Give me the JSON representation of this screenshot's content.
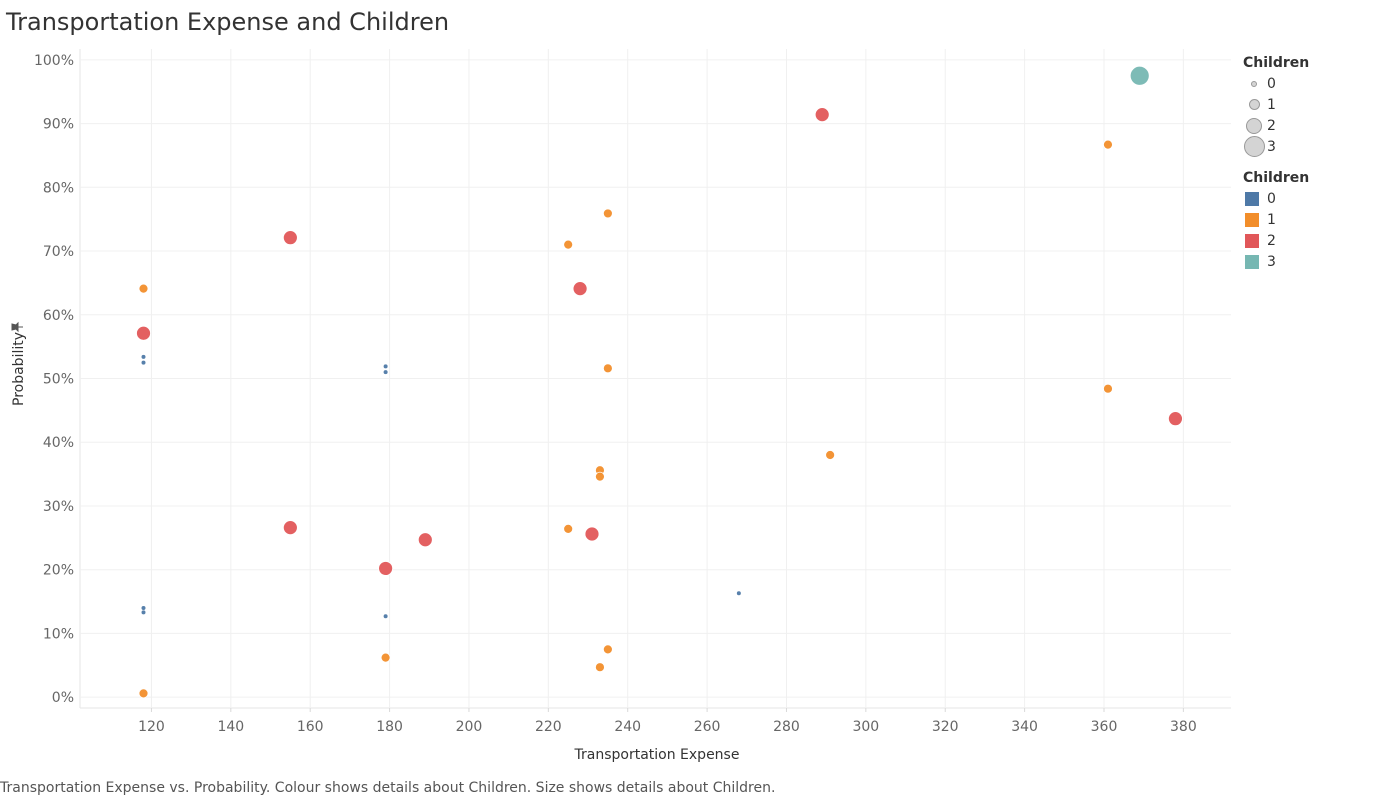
{
  "title": "Transportation Expense and Children",
  "caption": "Transportation Expense vs. Probability. Colour shows details about Children. Size shows details about Children.",
  "legend_size": {
    "title": "Children",
    "items": [
      {
        "label": "0",
        "radius": 2
      },
      {
        "label": "1",
        "radius": 4.5
      },
      {
        "label": "2",
        "radius": 7
      },
      {
        "label": "3",
        "radius": 9.5
      }
    ]
  },
  "legend_color": {
    "title": "Children",
    "items": [
      {
        "label": "0",
        "color": "#4e79a7"
      },
      {
        "label": "1",
        "color": "#f28e2b"
      },
      {
        "label": "2",
        "color": "#e15759"
      },
      {
        "label": "3",
        "color": "#76b7b2"
      }
    ]
  },
  "chart_data": {
    "type": "scatter",
    "title": "Transportation Expense and Children",
    "xlabel": "Transportation Expense",
    "ylabel": "Probability",
    "xlim": [
      102,
      392
    ],
    "ylim": [
      -1.7,
      101.7
    ],
    "x_ticks": [
      120,
      140,
      160,
      180,
      200,
      220,
      240,
      260,
      280,
      300,
      320,
      340,
      360,
      380
    ],
    "y_ticks": [
      0,
      10,
      20,
      30,
      40,
      50,
      60,
      70,
      80,
      90,
      100
    ],
    "y_tick_labels": [
      "0%",
      "10%",
      "20%",
      "30%",
      "40%",
      "50%",
      "60%",
      "70%",
      "80%",
      "90%",
      "100%"
    ],
    "grid": true,
    "series": [
      {
        "name": "0",
        "color": "#4e79a7",
        "radius": 2,
        "points": [
          [
            118,
            53.4
          ],
          [
            118,
            52.5
          ],
          [
            179,
            51.9
          ],
          [
            179,
            51.0
          ],
          [
            118,
            14.0
          ],
          [
            118,
            13.3
          ],
          [
            179,
            12.7
          ],
          [
            268,
            16.3
          ]
        ]
      },
      {
        "name": "1",
        "color": "#f28e2b",
        "radius": 4.5,
        "points": [
          [
            118,
            64.1
          ],
          [
            118,
            0.6
          ],
          [
            179,
            6.2
          ],
          [
            225,
            71.0
          ],
          [
            225,
            26.4
          ],
          [
            233,
            35.6
          ],
          [
            233,
            34.6
          ],
          [
            233,
            4.7
          ],
          [
            235,
            75.9
          ],
          [
            235,
            51.6
          ],
          [
            235,
            7.5
          ],
          [
            291,
            38.0
          ],
          [
            361,
            86.7
          ],
          [
            361,
            48.4
          ]
        ]
      },
      {
        "name": "2",
        "color": "#e15759",
        "radius": 7,
        "points": [
          [
            118,
            57.1
          ],
          [
            155,
            72.1
          ],
          [
            155,
            26.6
          ],
          [
            179,
            20.2
          ],
          [
            189,
            24.7
          ],
          [
            228,
            64.1
          ],
          [
            231,
            25.6
          ],
          [
            289,
            91.4
          ],
          [
            378,
            43.7
          ]
        ]
      },
      {
        "name": "3",
        "color": "#76b7b2",
        "radius": 9.5,
        "points": [
          [
            369,
            97.5
          ]
        ]
      }
    ]
  }
}
